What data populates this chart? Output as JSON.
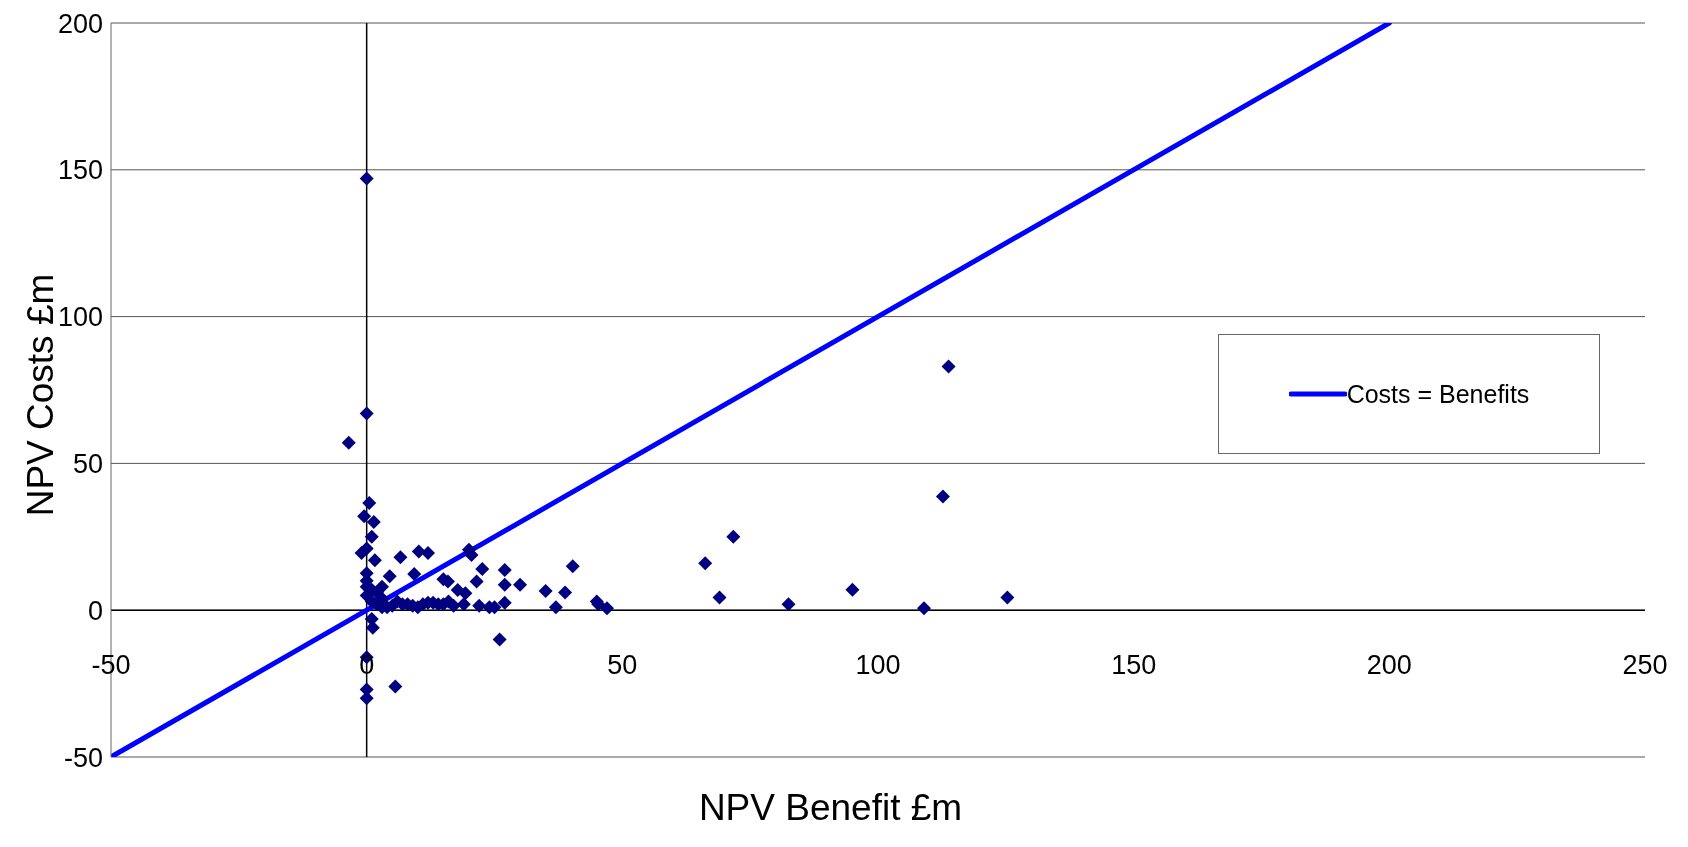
{
  "chart_data": {
    "type": "scatter",
    "xlabel": "NPV Benefit £m",
    "ylabel": "NPV Costs £m",
    "xlim": [
      -50,
      250
    ],
    "xticks": [
      -50,
      0,
      50,
      100,
      150,
      200,
      250
    ],
    "ylim": [
      -50,
      200
    ],
    "yticks": [
      -50,
      0,
      50,
      100,
      150,
      200
    ],
    "grid": "y",
    "legend": "right",
    "marker": "diamond",
    "series": [
      {
        "color": "#000080",
        "x": [
          0,
          0,
          -3.5,
          113.8,
          112.7,
          125.3,
          109,
          95,
          82.5,
          71.7,
          69,
          66.2,
          47,
          45.3,
          45,
          40.3,
          38.8,
          37,
          35,
          30,
          27,
          27,
          27,
          26,
          24,
          22.6,
          21.5,
          20,
          20.5,
          19.3,
          17.8,
          15.9,
          15,
          12,
          10.2,
          9.3,
          6.6,
          5.6,
          4.5,
          0.5,
          -0.5,
          1.4,
          1,
          0,
          -1,
          1.6,
          0,
          0,
          0,
          0,
          1.2,
          1,
          5,
          7,
          9,
          11,
          13,
          15,
          17,
          19,
          3,
          0,
          0,
          1,
          2,
          2,
          3,
          4,
          3,
          0,
          1,
          6,
          8,
          10,
          12,
          14,
          16,
          22,
          25
        ],
        "values": [
          147,
          67,
          57,
          83,
          38.7,
          4.3,
          0.7,
          7,
          2,
          25,
          4.3,
          16,
          0.7,
          2,
          3,
          15,
          6,
          1,
          6.5,
          8.7,
          13.7,
          8.7,
          2.5,
          -10,
          1,
          14,
          9.8,
          20.6,
          18.8,
          5.8,
          6.9,
          9.8,
          10.5,
          19.5,
          20,
          12.3,
          18,
          -26,
          11.6,
          36.5,
          32,
          30,
          25,
          21,
          19.5,
          17,
          12.6,
          -16,
          -27,
          -30,
          -6,
          -3,
          1.5,
          2,
          1.5,
          2,
          2.5,
          2,
          1.5,
          2,
          1,
          5,
          8,
          3,
          6,
          2,
          4,
          1,
          8,
          10,
          7,
          3,
          2,
          1,
          2.5,
          2,
          3,
          1.5,
          1
        ]
      },
      {
        "type": "line",
        "name": "Costs = Benefits",
        "color": "#0000ff",
        "marker": "none",
        "x": [
          -50,
          200
        ],
        "values": [
          -50,
          200
        ]
      }
    ]
  }
}
